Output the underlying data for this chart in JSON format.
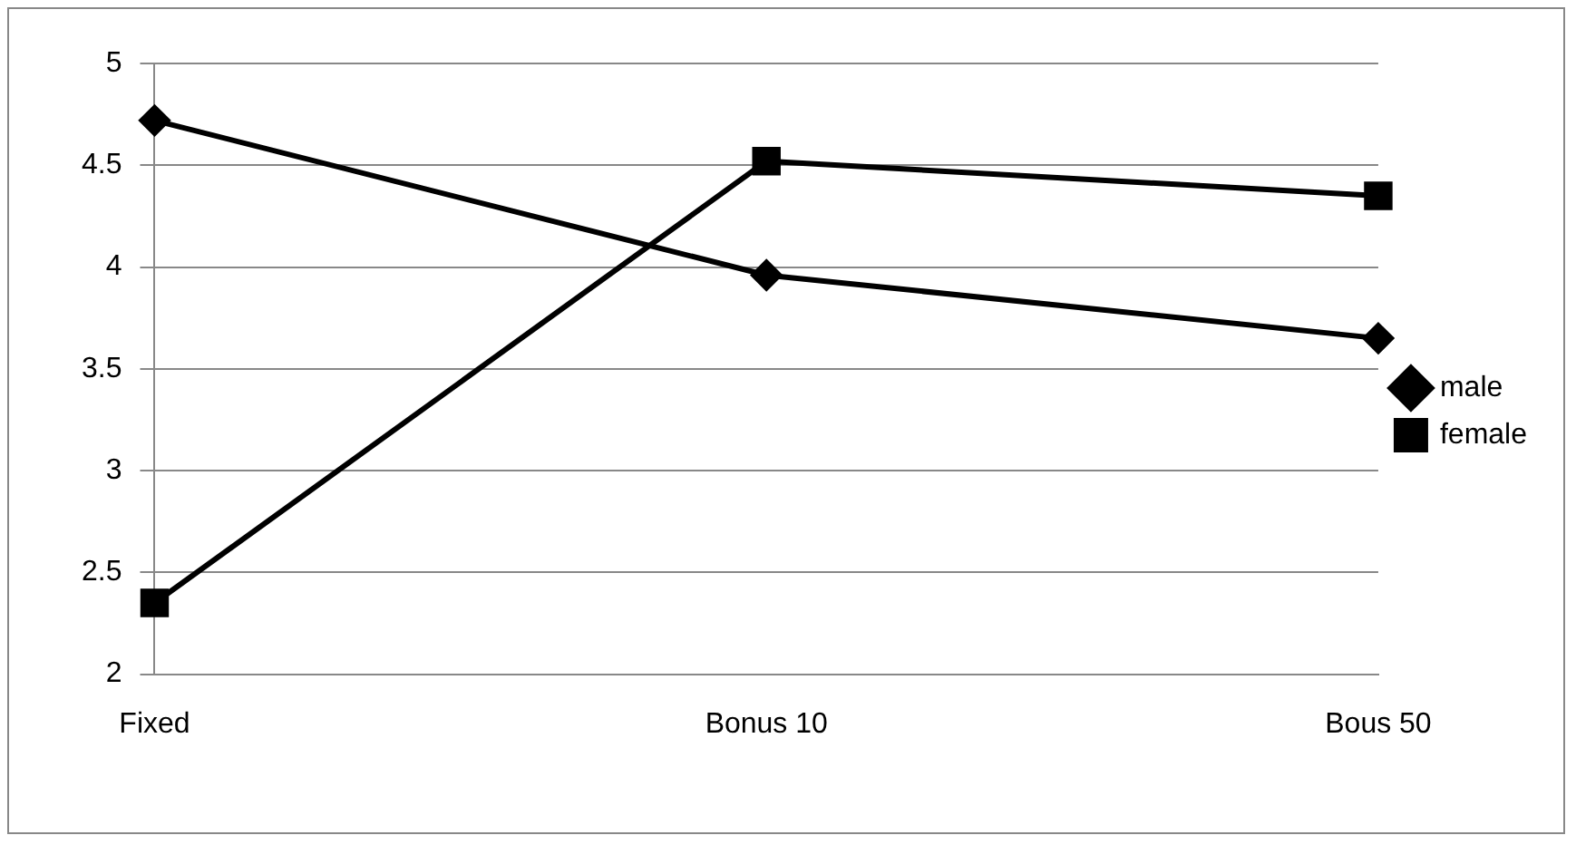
{
  "chart_data": {
    "type": "line",
    "categories": [
      "Fixed",
      "Bonus 10",
      "Bous 50"
    ],
    "series": [
      {
        "name": "male",
        "color": "#000000",
        "marker": "diamond",
        "values": [
          4.72,
          3.96,
          3.65
        ]
      },
      {
        "name": "female",
        "color": "#000000",
        "marker": "square",
        "values": [
          2.35,
          4.52,
          4.35
        ]
      }
    ],
    "ylim": [
      2,
      5
    ],
    "yticks": [
      2,
      2.5,
      3,
      3.5,
      4,
      4.5,
      5
    ],
    "grid": "y",
    "legend": "right",
    "line_style": "solid"
  }
}
